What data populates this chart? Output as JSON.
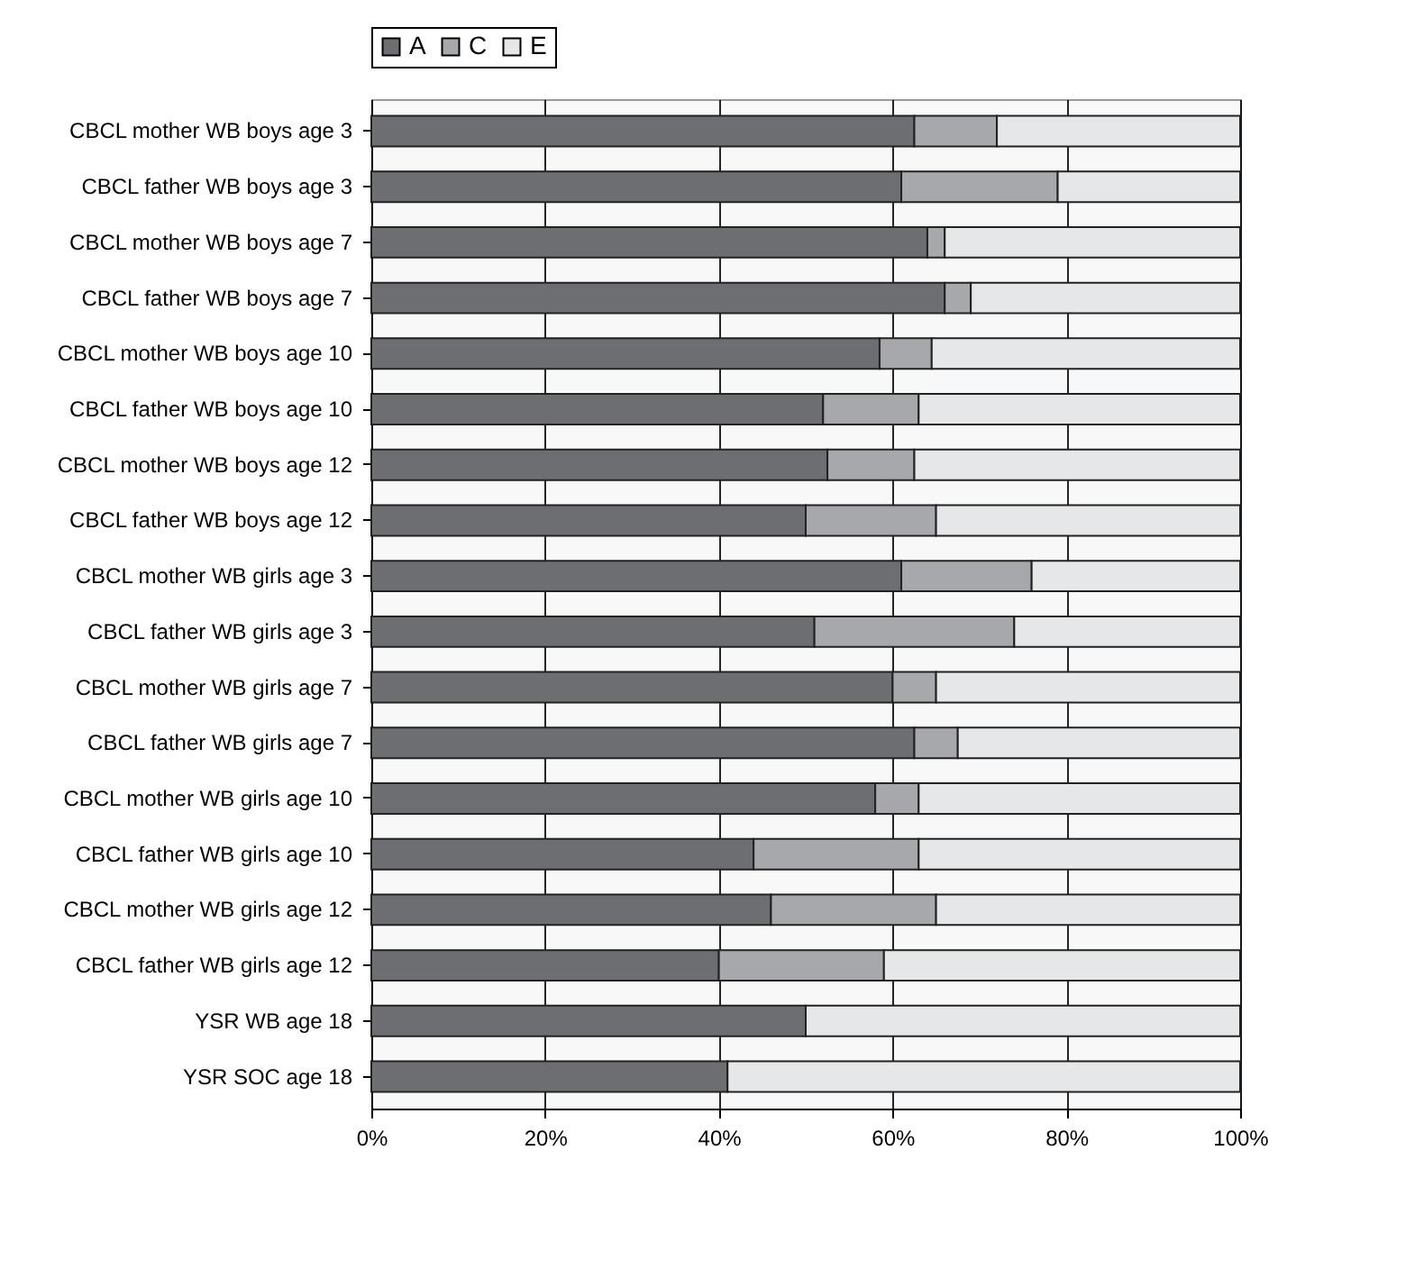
{
  "chart_data": {
    "type": "bar",
    "orientation": "horizontal",
    "stacked": true,
    "categories": [
      "CBCL mother WB boys age 3",
      "CBCL father WB boys age 3",
      "CBCL mother WB boys age 7",
      "CBCL father WB  boys age 7",
      "CBCL mother WB boys age 10",
      "CBCL father WB boys age 10",
      "CBCL mother WB boys age 12",
      "CBCL father WB boys age 12",
      "CBCL mother WB girls age 3",
      "CBCL father WB girls age 3",
      "CBCL mother WB girls age 7",
      "CBCL father WB  girls age 7",
      "CBCL mother WB girls age 10",
      "CBCL father WB girls age 10",
      "CBCL mother WB girls age 12",
      "CBCL father WB girls age 12",
      "YSR WB age 18",
      "YSR SOC age 18"
    ],
    "series": [
      {
        "name": "A",
        "color": "#6d6e71",
        "values": [
          62.5,
          61,
          64,
          66,
          58.5,
          52,
          52.5,
          50,
          61,
          51,
          60,
          62.5,
          58,
          44,
          46,
          40,
          50,
          41
        ]
      },
      {
        "name": "C",
        "color": "#a7a8ab",
        "values": [
          9.5,
          18,
          2,
          3,
          6,
          11,
          10,
          15,
          15,
          23,
          5,
          5,
          5,
          19,
          19,
          19,
          0,
          0
        ]
      },
      {
        "name": "E",
        "color": "#e6e7e8",
        "values": [
          28,
          21,
          34,
          31,
          35.5,
          37,
          37.5,
          35,
          24,
          26,
          35,
          32.5,
          37,
          37,
          35,
          41,
          50,
          59
        ]
      }
    ],
    "xlim": [
      0,
      100
    ],
    "xticks": [
      {
        "value": 0,
        "label": "0%"
      },
      {
        "value": 20,
        "label": "20%"
      },
      {
        "value": 40,
        "label": "40%"
      },
      {
        "value": 60,
        "label": "60%"
      },
      {
        "value": 80,
        "label": "80%"
      },
      {
        "value": 100,
        "label": "100%"
      }
    ],
    "grid": "x",
    "legend": "top"
  }
}
